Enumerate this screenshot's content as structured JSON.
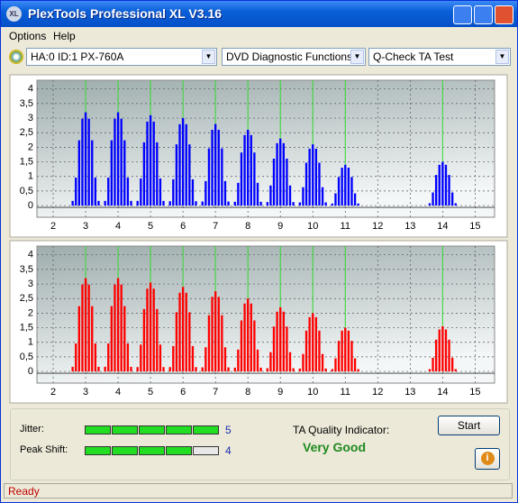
{
  "window": {
    "title": "PlexTools Professional XL V3.16"
  },
  "menu": [
    "Options",
    "Help"
  ],
  "toolbar": {
    "drive": "HA:0 ID:1  PX-760A",
    "function": "DVD Diagnostic Functions",
    "test": "Q-Check TA Test"
  },
  "chart_data": [
    {
      "type": "bar",
      "color": "#0000ff",
      "reference_color": "#33dd33",
      "grid": true,
      "xlim": [
        1.5,
        15.6
      ],
      "ylim": [
        -0.4,
        4.3
      ],
      "xticks": [
        2,
        3,
        4,
        5,
        6,
        7,
        8,
        9,
        10,
        11,
        12,
        13,
        14,
        15
      ],
      "yticks": [
        0,
        {
          "value": 0.5,
          "label": "0,5"
        },
        1,
        {
          "value": 1.5,
          "label": "1,5"
        },
        2,
        {
          "value": 2.5,
          "label": "2,5"
        },
        3,
        {
          "value": 3.5,
          "label": "3,5"
        },
        4
      ],
      "reference_lines": [
        3,
        4,
        5,
        6,
        7,
        8,
        9,
        10,
        11,
        14
      ],
      "x": [
        2.6,
        2.7,
        2.8,
        2.9,
        3,
        3.1,
        3.2,
        3.3,
        3.4,
        3.6,
        3.7,
        3.8,
        3.9,
        4,
        4.1,
        4.2,
        4.3,
        4.4,
        4.6,
        4.7,
        4.8,
        4.9,
        5,
        5.1,
        5.2,
        5.3,
        5.4,
        5.6,
        5.7,
        5.8,
        5.9,
        6,
        6.1,
        6.2,
        6.3,
        6.4,
        6.6,
        6.7,
        6.8,
        6.9,
        7,
        7.1,
        7.2,
        7.3,
        7.4,
        7.6,
        7.7,
        7.8,
        7.9,
        8,
        8.1,
        8.2,
        8.3,
        8.4,
        8.6,
        8.7,
        8.8,
        8.9,
        9,
        9.1,
        9.2,
        9.3,
        9.4,
        9.6,
        9.7,
        9.8,
        9.9,
        10,
        10.1,
        10.2,
        10.3,
        10.4,
        10.6,
        10.7,
        10.8,
        10.9,
        11,
        11.1,
        11.2,
        11.3,
        11.4,
        13.6,
        13.7,
        13.8,
        13.9,
        14,
        14.1,
        14.2,
        14.3,
        14.4
      ],
      "values": [
        0.16,
        0.96,
        2.24,
        2.98,
        3.2,
        2.98,
        2.24,
        0.96,
        0.16,
        0.16,
        0.96,
        2.24,
        2.98,
        3.2,
        2.98,
        2.24,
        0.96,
        0.16,
        0.16,
        0.93,
        2.17,
        2.88,
        3.1,
        2.88,
        2.17,
        0.93,
        0.16,
        0.15,
        0.9,
        2.1,
        2.79,
        3,
        2.79,
        2.1,
        0.9,
        0.15,
        0.14,
        0.84,
        1.96,
        2.6,
        2.8,
        2.6,
        1.96,
        0.84,
        0.14,
        0.13,
        0.78,
        1.82,
        2.42,
        2.6,
        2.42,
        1.82,
        0.78,
        0.13,
        0.12,
        0.69,
        1.61,
        2.14,
        2.3,
        2.14,
        1.61,
        0.69,
        0.12,
        0.11,
        0.63,
        1.47,
        1.95,
        2.1,
        1.95,
        1.47,
        0.63,
        0.11,
        0.07,
        0.42,
        0.98,
        1.3,
        1.4,
        1.3,
        0.98,
        0.42,
        0.07,
        0.08,
        0.45,
        1.05,
        1.4,
        1.5,
        1.4,
        1.05,
        0.45,
        0.08
      ]
    },
    {
      "type": "bar",
      "color": "#ff0000",
      "reference_color": "#33dd33",
      "grid": true,
      "xlim": [
        1.5,
        15.6
      ],
      "ylim": [
        -0.4,
        4.3
      ],
      "xticks": [
        2,
        3,
        4,
        5,
        6,
        7,
        8,
        9,
        10,
        11,
        12,
        13,
        14,
        15
      ],
      "yticks": [
        0,
        {
          "value": 0.5,
          "label": "0,5"
        },
        1,
        {
          "value": 1.5,
          "label": "1,5"
        },
        2,
        {
          "value": 2.5,
          "label": "2,5"
        },
        3,
        {
          "value": 3.5,
          "label": "3,5"
        },
        4
      ],
      "reference_lines": [
        3,
        4,
        5,
        6,
        7,
        8,
        9,
        10,
        11,
        14
      ],
      "x": [
        2.6,
        2.7,
        2.8,
        2.9,
        3,
        3.1,
        3.2,
        3.3,
        3.4,
        3.6,
        3.7,
        3.8,
        3.9,
        4,
        4.1,
        4.2,
        4.3,
        4.4,
        4.6,
        4.7,
        4.8,
        4.9,
        5,
        5.1,
        5.2,
        5.3,
        5.4,
        5.6,
        5.7,
        5.8,
        5.9,
        6,
        6.1,
        6.2,
        6.3,
        6.4,
        6.6,
        6.7,
        6.8,
        6.9,
        7,
        7.1,
        7.2,
        7.3,
        7.4,
        7.6,
        7.7,
        7.8,
        7.9,
        8,
        8.1,
        8.2,
        8.3,
        8.4,
        8.6,
        8.7,
        8.8,
        8.9,
        9,
        9.1,
        9.2,
        9.3,
        9.4,
        9.6,
        9.7,
        9.8,
        9.9,
        10,
        10.1,
        10.2,
        10.3,
        10.4,
        10.6,
        10.7,
        10.8,
        10.9,
        11,
        11.1,
        11.2,
        11.3,
        11.4,
        13.6,
        13.7,
        13.8,
        13.9,
        14,
        14.1,
        14.2,
        14.3,
        14.4
      ],
      "values": [
        0.16,
        0.96,
        2.24,
        2.98,
        3.2,
        2.98,
        2.24,
        0.96,
        0.16,
        0.16,
        0.96,
        2.24,
        2.98,
        3.2,
        2.98,
        2.24,
        0.96,
        0.16,
        0.15,
        0.92,
        2.14,
        2.84,
        3.05,
        2.84,
        2.14,
        0.92,
        0.15,
        0.15,
        0.87,
        2.03,
        2.7,
        2.9,
        2.7,
        2.03,
        0.87,
        0.15,
        0.14,
        0.83,
        1.93,
        2.56,
        2.75,
        2.56,
        1.93,
        0.83,
        0.14,
        0.13,
        0.75,
        1.75,
        2.33,
        2.5,
        2.33,
        1.75,
        0.75,
        0.13,
        0.11,
        0.66,
        1.54,
        2.05,
        2.2,
        2.05,
        1.54,
        0.66,
        0.11,
        0.1,
        0.6,
        1.4,
        1.86,
        2,
        1.86,
        1.4,
        0.6,
        0.1,
        0.08,
        0.45,
        1.05,
        1.4,
        1.5,
        1.4,
        1.05,
        0.45,
        0.08,
        0.08,
        0.47,
        1.09,
        1.44,
        1.55,
        1.44,
        1.09,
        0.47,
        0.08
      ]
    }
  ],
  "results": {
    "jitter": {
      "label": "Jitter:",
      "value": 5
    },
    "peak_shift": {
      "label": "Peak Shift:",
      "value": 4
    },
    "quality_label": "TA Quality Indicator:",
    "quality": "Very Good",
    "button": "Start"
  },
  "status": "Ready"
}
